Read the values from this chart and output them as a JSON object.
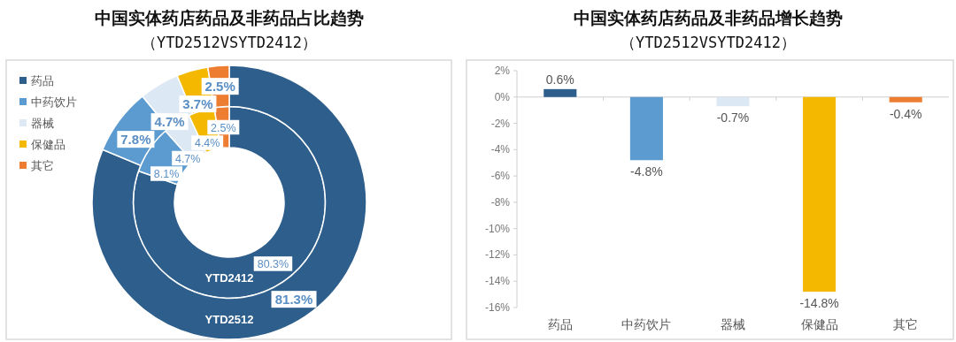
{
  "chart_data": [
    {
      "type": "donut",
      "title": "中国实体药店药品及非药品占比趋势",
      "subtitle": "（YTD2512VSYTD2412）",
      "categories": [
        "药品",
        "中药饮片",
        "器械",
        "保健品",
        "其它"
      ],
      "colors": [
        "#2e5f8c",
        "#5b9bd0",
        "#dce8f4",
        "#f5b800",
        "#ed7d31"
      ],
      "legend": "top left",
      "series": [
        {
          "name": "YTD2412",
          "values": [
            80.3,
            8.1,
            4.7,
            4.4,
            2.5
          ],
          "value_labels": [
            "80.3%",
            "8.1%",
            "4.7%",
            "4.4%",
            "2.5%"
          ]
        },
        {
          "name": "YTD2512",
          "values": [
            81.3,
            7.8,
            4.7,
            3.7,
            2.5
          ],
          "value_labels": [
            "81.3%",
            "7.8%",
            "4.7%",
            "3.7%",
            "2.5%"
          ]
        }
      ]
    },
    {
      "type": "bar",
      "title": "中国实体药店药品及非药品增长趋势",
      "subtitle": "（YTD2512VSYTD2412）",
      "categories": [
        "药品",
        "中药饮片",
        "器械",
        "保健品",
        "其它"
      ],
      "values": [
        0.6,
        -4.8,
        -0.7,
        -14.8,
        -0.4
      ],
      "colors": [
        "#2e5f8c",
        "#5b9bd0",
        "#dce8f4",
        "#f5b800",
        "#ed7d31"
      ],
      "value_labels": [
        "0.6%",
        "-4.8%",
        "-0.7%",
        "-14.8%",
        "-0.4%"
      ],
      "ylim": [
        -16,
        2
      ],
      "yticks": [
        {
          "value": 2,
          "label": "2%"
        },
        {
          "value": 0,
          "label": "0%"
        },
        {
          "value": -2,
          "label": "-2%"
        },
        {
          "value": -4,
          "label": "-4%"
        },
        {
          "value": -6,
          "label": "-6%"
        },
        {
          "value": -8,
          "label": "-8%"
        },
        {
          "value": -10,
          "label": "-10%"
        },
        {
          "value": -12,
          "label": "-12%"
        },
        {
          "value": -14,
          "label": "-14%"
        },
        {
          "value": -16,
          "label": "-16%"
        }
      ]
    }
  ]
}
